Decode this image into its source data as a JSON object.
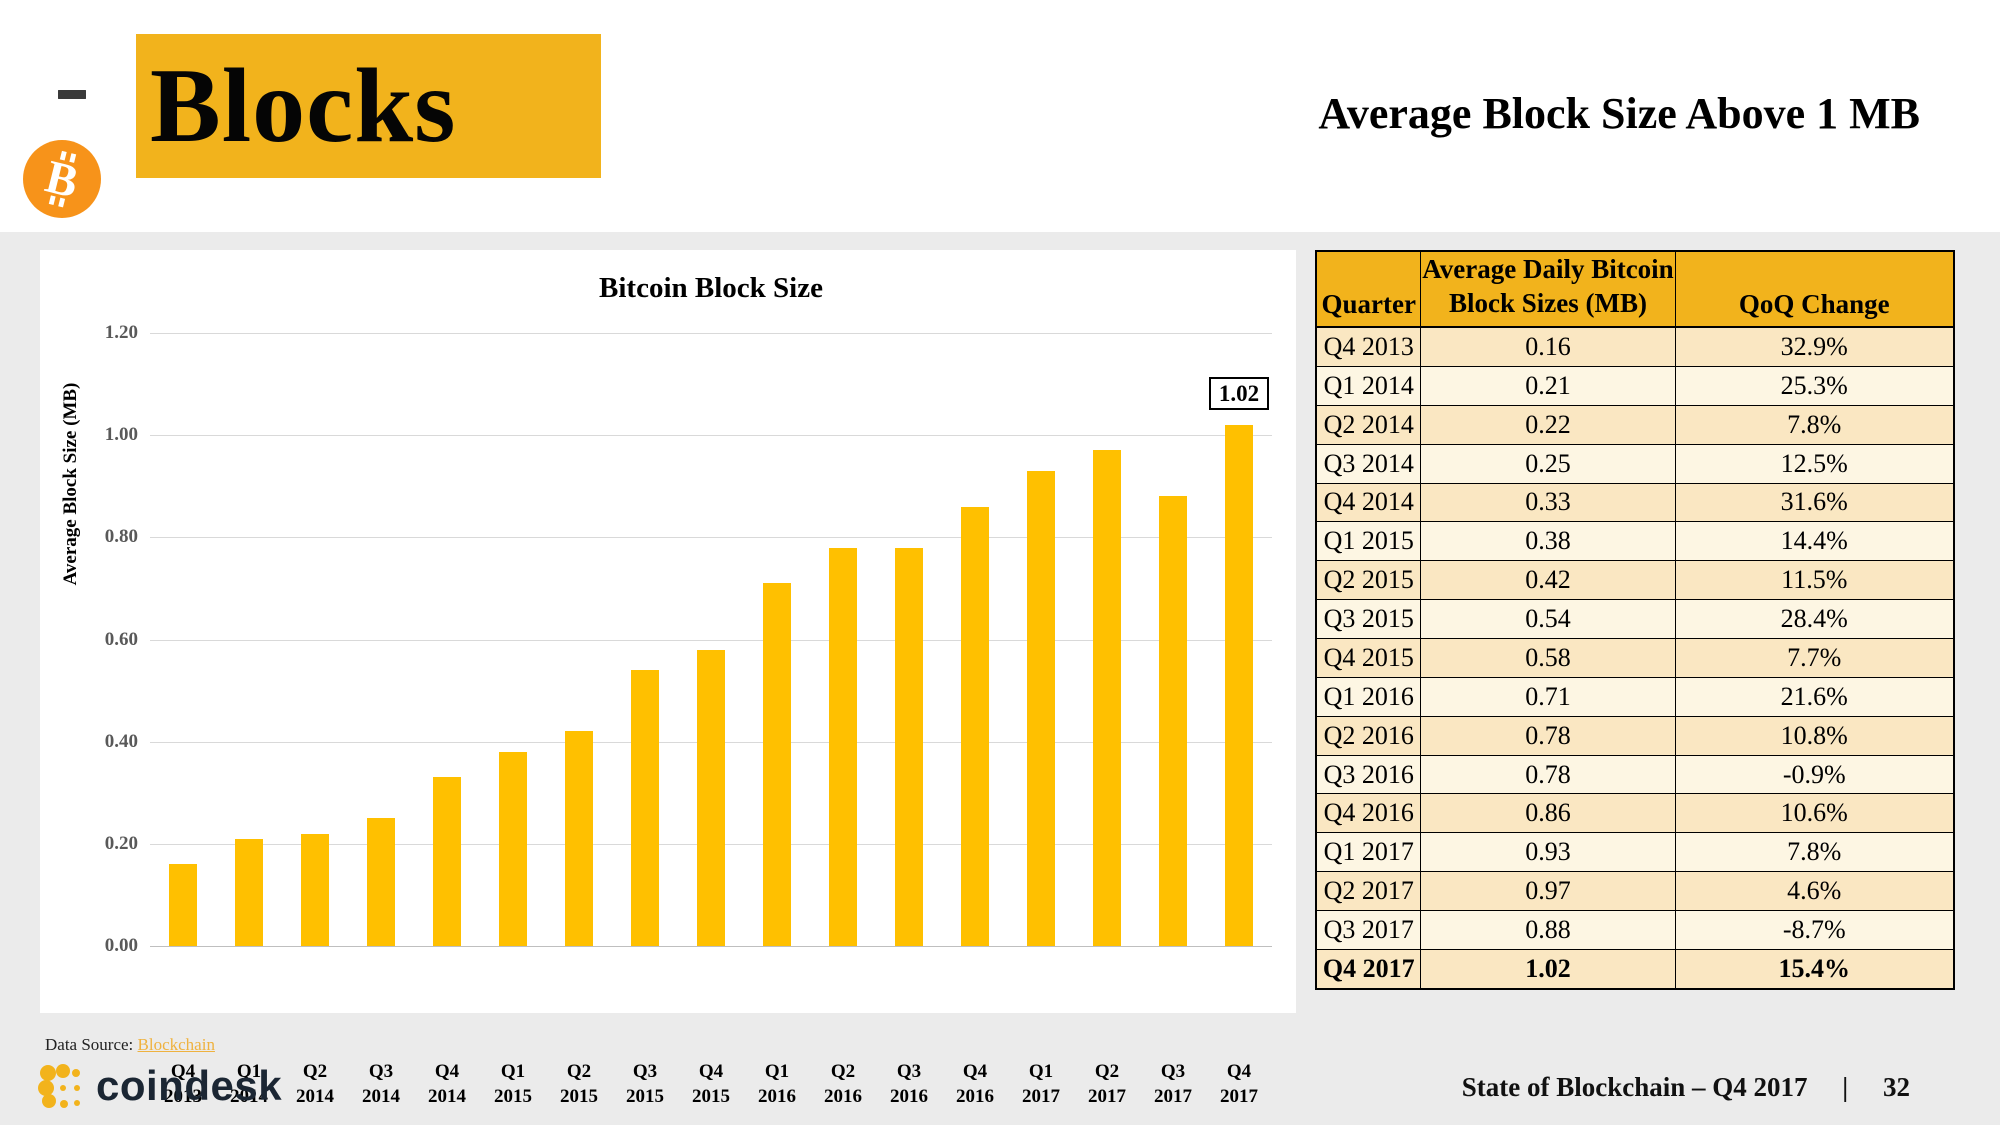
{
  "header": {
    "title": "Blocks",
    "subtitle": "Average Block Size Above 1 MB"
  },
  "chart_data": {
    "type": "bar",
    "title": "Bitcoin Block Size",
    "ylabel": "Average Block Size (MB)",
    "categories": [
      "Q4 2013",
      "Q1 2014",
      "Q2 2014",
      "Q3 2014",
      "Q4 2014",
      "Q1 2015",
      "Q2 2015",
      "Q3 2015",
      "Q4 2015",
      "Q1 2016",
      "Q2 2016",
      "Q3 2016",
      "Q4 2016",
      "Q1 2017",
      "Q2 2017",
      "Q3 2017",
      "Q4 2017"
    ],
    "values": [
      0.16,
      0.21,
      0.22,
      0.25,
      0.33,
      0.38,
      0.42,
      0.54,
      0.58,
      0.71,
      0.78,
      0.78,
      0.86,
      0.93,
      0.97,
      0.88,
      1.02
    ],
    "ylim": [
      0,
      1.2
    ],
    "yticks": [
      "0.00",
      "0.20",
      "0.40",
      "0.60",
      "0.80",
      "1.00",
      "1.20"
    ],
    "grid": true,
    "callout": {
      "index": 16,
      "label": "1.02"
    }
  },
  "table": {
    "headers": {
      "quarter": "Quarter",
      "size_line1": "Average Daily Bitcoin",
      "size_line2": "Block Sizes (MB)",
      "qoq": "QoQ Change"
    },
    "rows": [
      {
        "quarter": "Q4 2013",
        "size": "0.16",
        "qoq": "32.9%"
      },
      {
        "quarter": "Q1 2014",
        "size": "0.21",
        "qoq": "25.3%"
      },
      {
        "quarter": "Q2 2014",
        "size": "0.22",
        "qoq": "7.8%"
      },
      {
        "quarter": "Q3 2014",
        "size": "0.25",
        "qoq": "12.5%"
      },
      {
        "quarter": "Q4 2014",
        "size": "0.33",
        "qoq": "31.6%"
      },
      {
        "quarter": "Q1 2015",
        "size": "0.38",
        "qoq": "14.4%"
      },
      {
        "quarter": "Q2 2015",
        "size": "0.42",
        "qoq": "11.5%"
      },
      {
        "quarter": "Q3 2015",
        "size": "0.54",
        "qoq": "28.4%"
      },
      {
        "quarter": "Q4 2015",
        "size": "0.58",
        "qoq": "7.7%"
      },
      {
        "quarter": "Q1 2016",
        "size": "0.71",
        "qoq": "21.6%"
      },
      {
        "quarter": "Q2 2016",
        "size": "0.78",
        "qoq": "10.8%"
      },
      {
        "quarter": "Q3 2016",
        "size": "0.78",
        "qoq": "-0.9%"
      },
      {
        "quarter": "Q4 2016",
        "size": "0.86",
        "qoq": "10.6%"
      },
      {
        "quarter": "Q1 2017",
        "size": "0.93",
        "qoq": "7.8%"
      },
      {
        "quarter": "Q2 2017",
        "size": "0.97",
        "qoq": "4.6%"
      },
      {
        "quarter": "Q3 2017",
        "size": "0.88",
        "qoq": "-8.7%"
      },
      {
        "quarter": "Q4 2017",
        "size": "1.02",
        "qoq": "15.4%"
      }
    ]
  },
  "footer": {
    "data_source_label": "Data Source: ",
    "data_source_link": "Blockchain",
    "brand": "coindesk",
    "right_text": "State of Blockchain – Q4 2017",
    "separator": "|",
    "page_number": "32"
  },
  "colors": {
    "accent_gold": "#F2B31C",
    "bar_gold": "#FFC000",
    "bitcoin_orange": "#F7931A",
    "row_dark": "#FAE7C2",
    "row_light": "#FDF6E3",
    "link_gold": "#EFB23F",
    "coindesk_navy": "#1B2633",
    "background_gray": "#EBEBEB"
  }
}
